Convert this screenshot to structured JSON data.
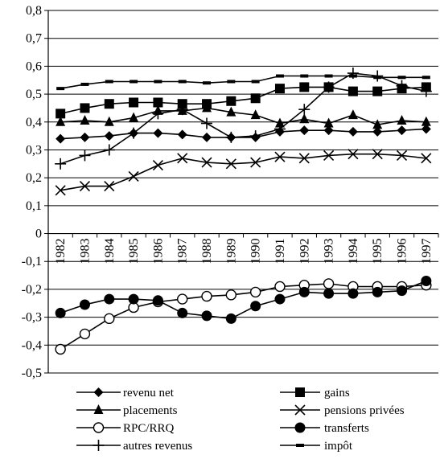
{
  "chart_data": {
    "type": "line",
    "x": [
      "1982",
      "1983",
      "1984",
      "1985",
      "1986",
      "1987",
      "1988",
      "1989",
      "1990",
      "1991",
      "1992",
      "1993",
      "1994",
      "1995",
      "1996",
      "1997"
    ],
    "ylim": [
      -0.5,
      0.8
    ],
    "yticks": [
      -0.5,
      -0.4,
      -0.3,
      -0.2,
      -0.1,
      0,
      0.1,
      0.2,
      0.3,
      0.4,
      0.5,
      0.6,
      0.7,
      0.8
    ],
    "ytick_labels": [
      "-0,5",
      "-0,4",
      "-0,3",
      "-0,2",
      "-0,1",
      "0",
      "0,1",
      "0,2",
      "0,3",
      "0,4",
      "0,5",
      "0,6",
      "0,7",
      "0,8"
    ],
    "grid": true,
    "legend_position": "bottom",
    "series": [
      {
        "name": "revenu net",
        "marker": "diamond",
        "values": [
          0.34,
          0.345,
          0.35,
          0.36,
          0.36,
          0.355,
          0.345,
          0.345,
          0.345,
          0.365,
          0.37,
          0.37,
          0.365,
          0.365,
          0.37,
          0.375
        ]
      },
      {
        "name": "gains",
        "marker": "square",
        "values": [
          0.43,
          0.45,
          0.465,
          0.47,
          0.47,
          0.465,
          0.465,
          0.475,
          0.485,
          0.52,
          0.525,
          0.525,
          0.51,
          0.51,
          0.52,
          0.525
        ]
      },
      {
        "name": "placements",
        "marker": "triangle",
        "values": [
          0.4,
          0.405,
          0.4,
          0.415,
          0.44,
          0.44,
          0.45,
          0.435,
          0.425,
          0.395,
          0.41,
          0.395,
          0.425,
          0.39,
          0.405,
          0.4
        ]
      },
      {
        "name": "pensions privées",
        "marker": "x",
        "values": [
          0.155,
          0.17,
          0.17,
          0.205,
          0.245,
          0.27,
          0.255,
          0.25,
          0.255,
          0.275,
          0.27,
          0.28,
          0.285,
          0.285,
          0.28,
          0.27
        ]
      },
      {
        "name": "RPC/RRQ",
        "marker": "open-circle",
        "values": [
          -0.415,
          -0.36,
          -0.305,
          -0.265,
          -0.245,
          -0.235,
          -0.225,
          -0.22,
          -0.21,
          -0.19,
          -0.185,
          -0.18,
          -0.19,
          -0.19,
          -0.19,
          -0.185
        ]
      },
      {
        "name": "transferts",
        "marker": "filled-circle",
        "values": [
          -0.285,
          -0.255,
          -0.235,
          -0.235,
          -0.24,
          -0.285,
          -0.295,
          -0.305,
          -0.26,
          -0.235,
          -0.21,
          -0.215,
          -0.215,
          -0.21,
          -0.205,
          -0.17
        ]
      },
      {
        "name": "autres revenus",
        "marker": "plus",
        "values": [
          0.25,
          0.28,
          0.3,
          0.36,
          0.43,
          0.445,
          0.395,
          0.345,
          0.35,
          0.375,
          0.445,
          0.525,
          0.575,
          0.565,
          0.53,
          0.51
        ]
      },
      {
        "name": "impôt",
        "marker": "dash",
        "values": [
          0.52,
          0.535,
          0.545,
          0.545,
          0.545,
          0.545,
          0.54,
          0.545,
          0.545,
          0.565,
          0.565,
          0.565,
          0.565,
          0.56,
          0.56,
          0.56
        ]
      }
    ]
  }
}
